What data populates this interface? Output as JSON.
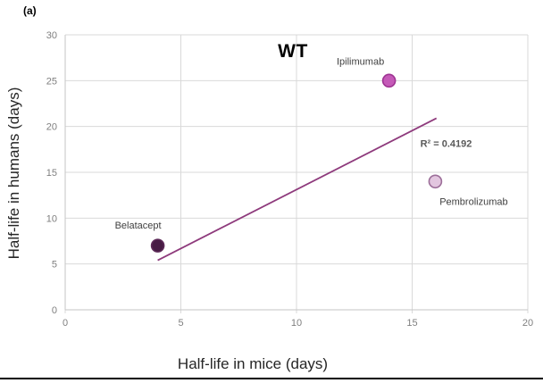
{
  "figure": {
    "panel_label": "(a)"
  },
  "chart_data": {
    "type": "scatter",
    "title": "WT",
    "xlabel": "Half-life in mice (days)",
    "ylabel": "Half-life in humans (days)",
    "xlim": [
      0,
      20
    ],
    "ylim": [
      0,
      30
    ],
    "xticks": [
      0,
      5,
      10,
      15,
      20
    ],
    "yticks": [
      0,
      5,
      10,
      15,
      20,
      25,
      30
    ],
    "grid": true,
    "legend_position": "none",
    "grid_color": "#d9d9d9",
    "axis_color": "#c6c6c6",
    "tick_label_color": "#7f7f7f",
    "point_label_color": "#3f3f3f",
    "points": [
      {
        "label": "Belatacept",
        "x": 4,
        "y": 7,
        "fill": "#471b44",
        "stroke": "#5d2a58",
        "label_offset": [
          -22,
          -19
        ]
      },
      {
        "label": "Ipilimumab",
        "x": 14,
        "y": 25,
        "fill": "#c55ab8",
        "stroke": "#9e3492",
        "label_offset": [
          -32,
          -18
        ]
      },
      {
        "label": "Pembrolizumab",
        "x": 16,
        "y": 14,
        "fill": "#e2c6df",
        "stroke": "#9c6e99",
        "label_offset": [
          43,
          26
        ]
      }
    ],
    "trendline": {
      "x1": 4,
      "y1": 5.4,
      "x2": 16.05,
      "y2": 20.9,
      "color": "#8e3a7c",
      "width": 1.8
    },
    "annotation": {
      "text": "R² = 0.4192",
      "x": 15.35,
      "y": 17.8,
      "color": "#595959"
    }
  }
}
